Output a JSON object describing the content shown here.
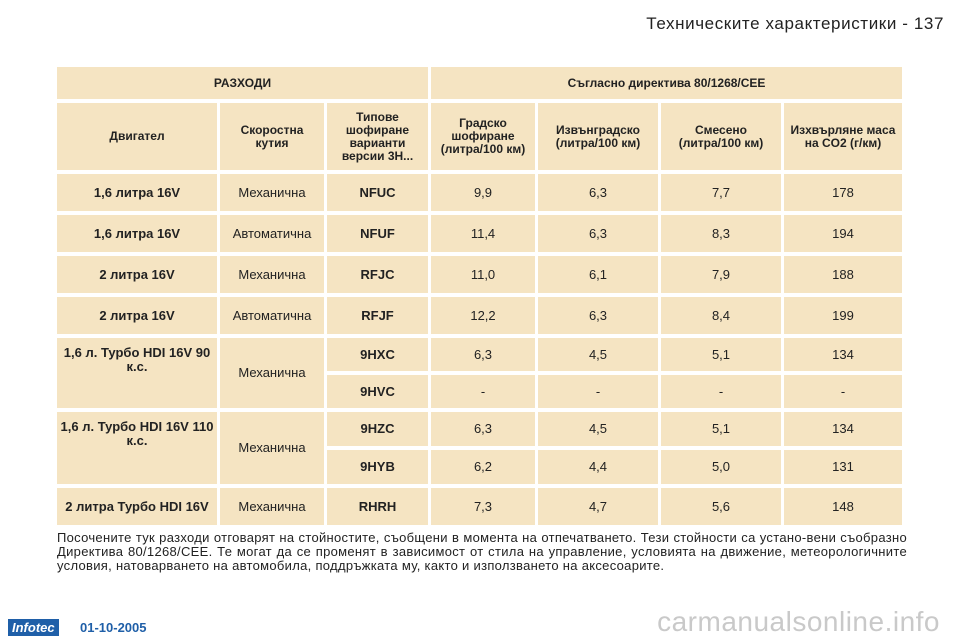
{
  "header": {
    "title": "Техническите характеристики - 137"
  },
  "table": {
    "section_left": "РАЗХОДИ",
    "section_right": "Съгласно директива 80/1268/CEE",
    "columns": [
      "Двигател",
      "Скоростна кутия",
      "Типове шофиране варианти версии 3H...",
      "Градско шофиране (литра/100 км)",
      "Извънградско (литра/100 км)",
      "Смесено (литра/100 км)",
      "Изхвърляне маса на CO2 (г/км)"
    ],
    "rows": [
      {
        "engine": "1,6 литра 16V",
        "gearbox": "Механична",
        "type": "NFUC",
        "urban": "9,9",
        "extra_urban": "6,3",
        "combined": "7,7",
        "co2": "178"
      },
      {
        "engine": "1,6 литра 16V",
        "gearbox": "Автоматична",
        "type": "NFUF",
        "urban": "11,4",
        "extra_urban": "6,3",
        "combined": "8,3",
        "co2": "194"
      },
      {
        "engine": "2 литра 16V",
        "gearbox": "Механична",
        "type": "RFJC",
        "urban": "11,0",
        "extra_urban": "6,1",
        "combined": "7,9",
        "co2": "188"
      },
      {
        "engine": "2 литра 16V",
        "gearbox": "Автоматична",
        "type": "RFJF",
        "urban": "12,2",
        "extra_urban": "6,3",
        "combined": "8,4",
        "co2": "199"
      }
    ],
    "group_hdi90": {
      "engine": "1,6 л. Турбо HDI 16V 90 к.с.",
      "gearbox": "Механична",
      "rows": [
        {
          "type": "9HXC",
          "urban": "6,3",
          "extra_urban": "4,5",
          "combined": "5,1",
          "co2": "134"
        },
        {
          "type": "9HVC",
          "urban": "-",
          "extra_urban": "-",
          "combined": "-",
          "co2": "-"
        }
      ]
    },
    "group_hdi110": {
      "engine": "1,6 л. Турбо HDI 16V 110 к.с.",
      "gearbox": "Механична",
      "rows": [
        {
          "type": "9HZC",
          "urban": "6,3",
          "extra_urban": "4,5",
          "combined": "5,1",
          "co2": "134"
        },
        {
          "type": "9HYB",
          "urban": "6,2",
          "extra_urban": "4,4",
          "combined": "5,0",
          "co2": "131"
        }
      ]
    },
    "last_row": {
      "engine": "2 литра Турбо HDI 16V",
      "gearbox": "Механична",
      "type": "RHRH",
      "urban": "7,3",
      "extra_urban": "4,7",
      "combined": "5,6",
      "co2": "148"
    }
  },
  "note": "Посочените тук разходи отговарят на стойностите, съобщени в момента на отпечатването. Тези стойности са устано-вени съобразно Директива 80/1268/CEE. Те могат да се променят в зависимост от стила на управление, условията на движение, метеорологичните условия, натоварването на автомобила, поддръжката му, както и използването на аксесоарите.",
  "footer": {
    "logo": "Infotec",
    "date": "01-10-2005",
    "watermark": "carmanualsonline.info"
  }
}
